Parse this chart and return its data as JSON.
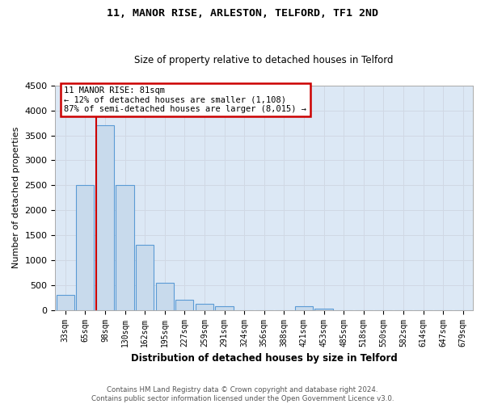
{
  "title": "11, MANOR RISE, ARLESTON, TELFORD, TF1 2ND",
  "subtitle": "Size of property relative to detached houses in Telford",
  "xlabel": "Distribution of detached houses by size in Telford",
  "ylabel": "Number of detached properties",
  "footer_line1": "Contains HM Land Registry data © Crown copyright and database right 2024.",
  "footer_line2": "Contains public sector information licensed under the Open Government Licence v3.0.",
  "annotation_title": "11 MANOR RISE: 81sqm",
  "annotation_line1": "← 12% of detached houses are smaller (1,108)",
  "annotation_line2": "87% of semi-detached houses are larger (8,015) →",
  "bar_labels": [
    "33sqm",
    "65sqm",
    "98sqm",
    "130sqm",
    "162sqm",
    "195sqm",
    "227sqm",
    "259sqm",
    "291sqm",
    "324sqm",
    "356sqm",
    "388sqm",
    "421sqm",
    "453sqm",
    "485sqm",
    "518sqm",
    "550sqm",
    "582sqm",
    "614sqm",
    "647sqm",
    "679sqm"
  ],
  "bar_values": [
    300,
    2500,
    3700,
    2500,
    1300,
    550,
    200,
    120,
    80,
    0,
    0,
    0,
    80,
    30,
    0,
    0,
    0,
    0,
    0,
    0,
    0
  ],
  "bar_color": "#c8daec",
  "bar_edge_color": "#5b9bd5",
  "grid_color": "#d0d8e4",
  "background_color": "#dce8f5",
  "red_line_x": 1.55,
  "annotation_box_color": "#cc0000",
  "ylim": [
    0,
    4500
  ],
  "yticks": [
    0,
    500,
    1000,
    1500,
    2000,
    2500,
    3000,
    3500,
    4000,
    4500
  ]
}
